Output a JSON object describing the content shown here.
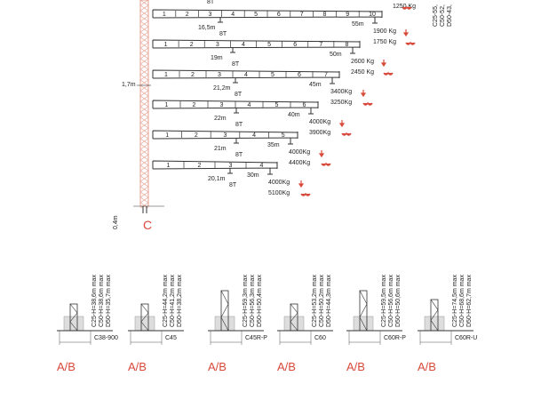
{
  "colors": {
    "mast": "#e4a08f",
    "accent": "#d9493a",
    "line": "#333333"
  },
  "top_cut": {
    "label": "8T",
    "load": "1250 Kg",
    "heights": [
      "C25-55,",
      "C50-52,",
      "D50-43,"
    ]
  },
  "mast": {
    "offset": "1,7m",
    "base_height": "0,4m",
    "label": "C"
  },
  "jibs": [
    {
      "inner": "16,5m",
      "inner_load": "8T",
      "reach": "55m",
      "load1": "1900 Kg",
      "load2": "1750 Kg",
      "sections": [
        "1",
        "2",
        "3",
        "4",
        "5",
        "6",
        "7",
        "8",
        "9",
        "10"
      ]
    },
    {
      "inner": "19m",
      "inner_load": "8T",
      "reach": "50m",
      "load1": "2600 Kg",
      "load2": "2450 Kg",
      "sections": [
        "1",
        "2",
        "3",
        "4",
        "5",
        "6",
        "7",
        "8"
      ]
    },
    {
      "inner": "21,2m",
      "inner_load": "8T",
      "reach": "45m",
      "load1": "3400Kg",
      "load2": "3250Kg",
      "sections": [
        "1",
        "2",
        "3",
        "4",
        "5",
        "6",
        "7"
      ]
    },
    {
      "inner": "22m",
      "inner_load": "8T",
      "reach": "40m",
      "load1": "4000Kg",
      "load2": "3900Kg",
      "sections": [
        "1",
        "2",
        "3",
        "4",
        "5",
        "6"
      ]
    },
    {
      "inner": "21m",
      "inner_load": "8T",
      "reach": "35m",
      "load1": "4000Kg",
      "load2": "4400Kg",
      "sections": [
        "1",
        "2",
        "3",
        "4",
        "5"
      ]
    },
    {
      "inner": "20,1m",
      "inner_load": "8T",
      "reach": "30m",
      "load1": "4000Kg",
      "load2": "5100Kg",
      "sections": [
        "1",
        "2",
        "3",
        "4"
      ]
    }
  ],
  "bases": [
    {
      "model": "C38-900",
      "type": "A/B",
      "heights": [
        "C25-H=38,6m max",
        "C50-H=38,6m max",
        "D50-H=35,7m max"
      ]
    },
    {
      "model": "C45",
      "type": "A/B",
      "heights": [
        "C25-H=44,2m max",
        "C50-H=41,2m max",
        "D50-H=38,2m max"
      ]
    },
    {
      "model": "C45R-P",
      "type": "A/B",
      "heights": [
        "C25-H=59,3m max",
        "C50-H=56,3m max",
        "D50-H=50,4m max"
      ]
    },
    {
      "model": "C60",
      "type": "A/B",
      "heights": [
        "C25-H=53,2m max",
        "C50-H=50,2m max",
        "D50-H=44,3m max"
      ]
    },
    {
      "model": "C60R-P",
      "type": "A/B",
      "heights": [
        "C25-H=59,5m max",
        "C50-H=56,6m max",
        "D50-H=50,6m max"
      ]
    },
    {
      "model": "C60R-U",
      "type": "A/B",
      "heights": [
        "C25-H=74,5m max",
        "C50-H=68,6m max",
        "D50-H=62,7m max"
      ]
    }
  ]
}
